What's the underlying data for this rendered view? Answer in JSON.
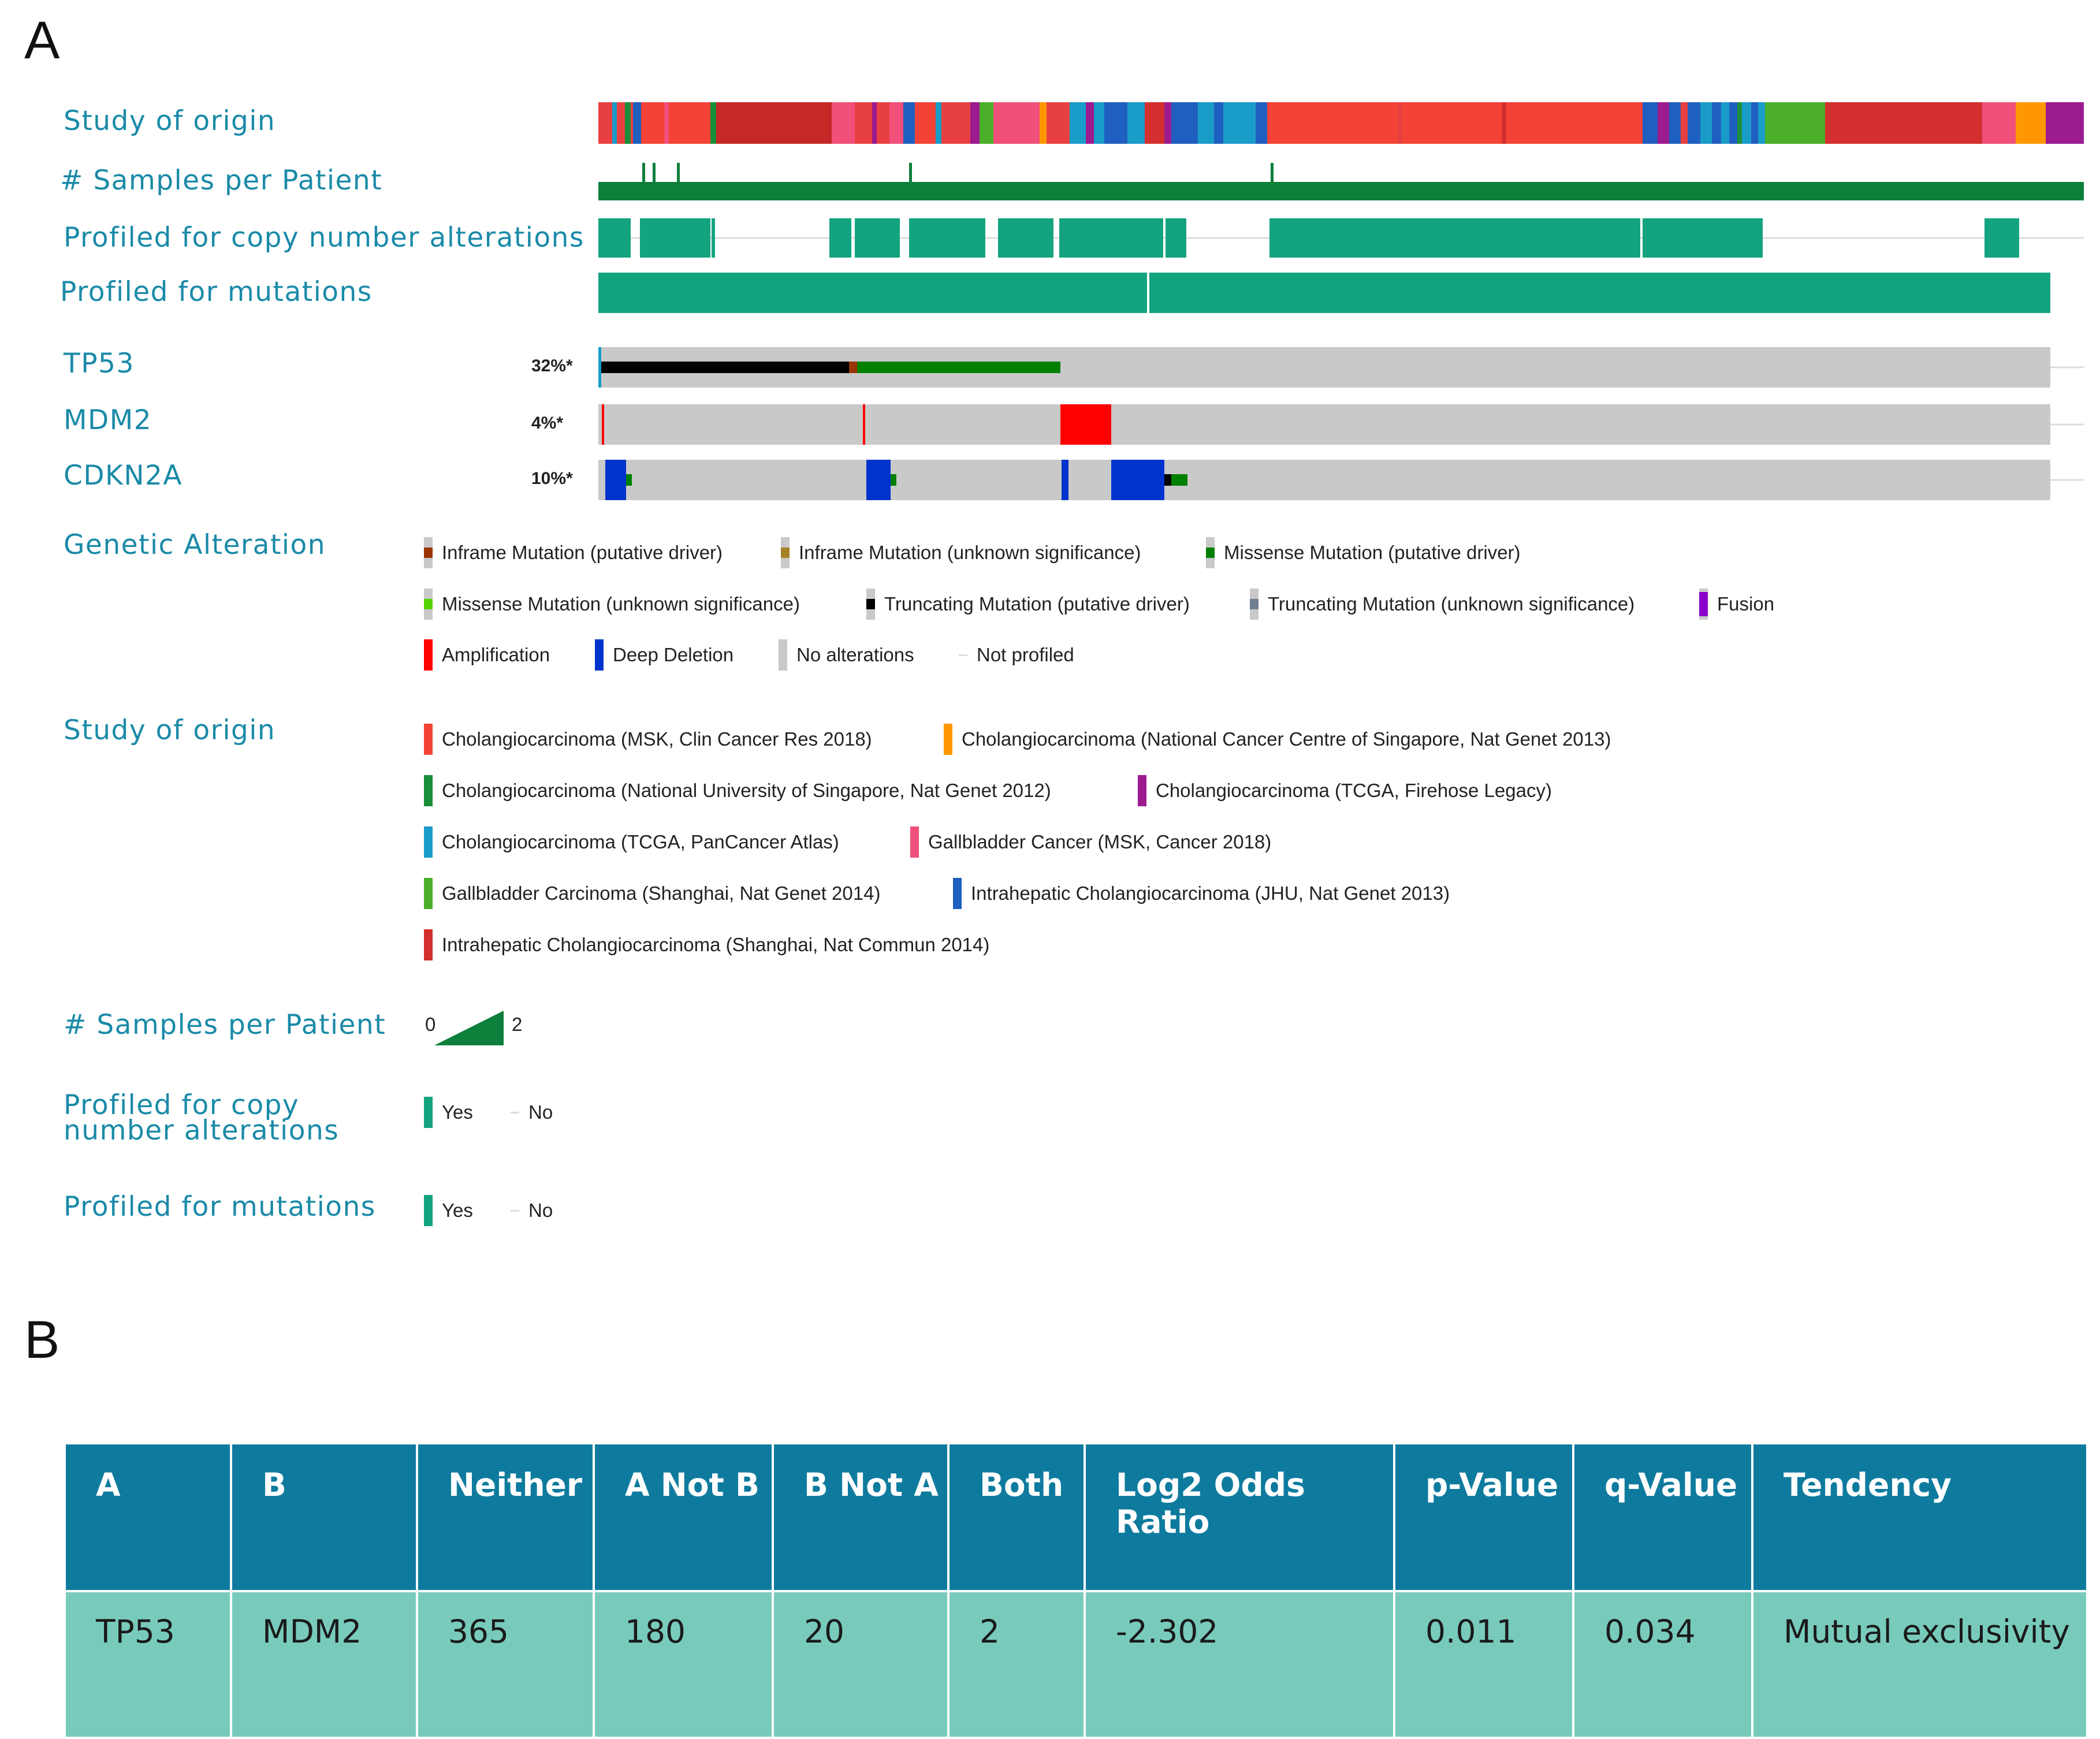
{
  "panel_a": {
    "letter": "A",
    "rows": {
      "study_of_origin": "Study of origin",
      "samples_per_patient": "# Samples per Patient",
      "profiled_cna": "Profiled for copy number alterations",
      "profiled_mutations": "Profiled for mutations"
    },
    "genes": [
      {
        "name": "TP53",
        "pct": "32%*"
      },
      {
        "name": "MDM2",
        "pct": "4%*"
      },
      {
        "name": "CDKN2A",
        "pct": "10%*"
      }
    ],
    "legend": {
      "genetic_alteration": {
        "title": "Genetic Alteration",
        "items": [
          {
            "label": "Inframe Mutation (putative driver)",
            "color": "#993404"
          },
          {
            "label": "Inframe Mutation (unknown significance)",
            "color": "#a68028"
          },
          {
            "label": "Missense Mutation (putative driver)",
            "color": "#008000"
          },
          {
            "label": "Missense Mutation (unknown significance)",
            "color": "#53d400"
          },
          {
            "label": "Truncating Mutation (putative driver)",
            "color": "#000000"
          },
          {
            "label": "Truncating Mutation (unknown significance)",
            "color": "#708090"
          },
          {
            "label": "Fusion",
            "color": "#8b00c9"
          },
          {
            "label": "Amplification",
            "color": "#ff0000"
          },
          {
            "label": "Deep Deletion",
            "color": "#0033cc"
          },
          {
            "label": "No alterations",
            "color": "#c9c9c9"
          },
          {
            "label": "Not profiled",
            "color": "#e6e6e6"
          }
        ]
      },
      "study_of_origin": {
        "title": "Study of origin",
        "items": [
          {
            "label": "Cholangiocarcinoma (MSK, Clin Cancer Res 2018)",
            "color": "#f44336"
          },
          {
            "label": "Cholangiocarcinoma (National Cancer Centre of Singapore, Nat Genet 2013)",
            "color": "#ff9800"
          },
          {
            "label": "Cholangiocarcinoma (National University of Singapore, Nat Genet 2012)",
            "color": "#1b8e3a"
          },
          {
            "label": "Cholangiocarcinoma (TCGA, Firehose Legacy)",
            "color": "#9c1b8e"
          },
          {
            "label": "Cholangiocarcinoma (TCGA, PanCancer Atlas)",
            "color": "#1a9cc9"
          },
          {
            "label": "Gallbladder Cancer (MSK, Cancer 2018)",
            "color": "#f0507a"
          },
          {
            "label": "Gallbladder Carcinoma (Shanghai, Nat Genet 2014)",
            "color": "#4caf2a"
          },
          {
            "label": "Intrahepatic Cholangiocarcinoma (JHU, Nat Genet 2013)",
            "color": "#1f5fbf"
          },
          {
            "label": "Intrahepatic Cholangiocarcinoma (Shanghai, Nat Commun 2014)",
            "color": "#d32f2f"
          }
        ]
      },
      "samples_per_patient": {
        "title": "# Samples per Patient",
        "min": "0",
        "max": "2"
      },
      "profiled_cna": {
        "title": "Profiled for copy number alterations",
        "yes": "Yes",
        "no": "No"
      },
      "profiled_mutations": {
        "title": "Profiled for mutations",
        "yes": "Yes",
        "no": "No"
      }
    }
  },
  "panel_b": {
    "letter": "B",
    "headers": [
      "A",
      "B",
      "Neither",
      "A Not B",
      "B Not A",
      "Both",
      "Log2 Odds Ratio",
      "p-Value",
      "q-Value",
      "Tendency"
    ],
    "rows": [
      [
        "TP53",
        "MDM2",
        "365",
        "180",
        "20",
        "2",
        "-2.302",
        "0.011",
        "0.034",
        "Mutual exclusivity"
      ]
    ]
  },
  "colors": {
    "label_blue": "#1a8aa8",
    "profiled_green": "#14a37f",
    "samples_green": "#0d7f3b",
    "table_header": "#0e7b9e",
    "table_row": "#78cbbb"
  }
}
